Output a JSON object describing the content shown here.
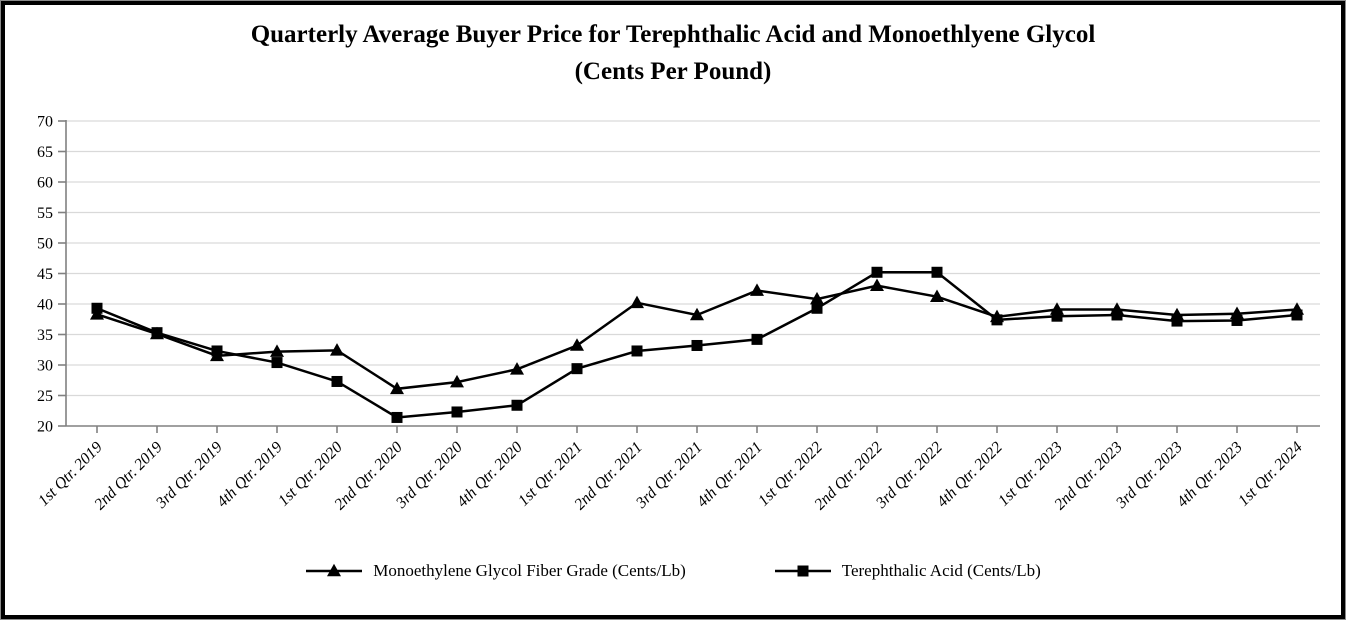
{
  "chart_data": {
    "type": "line",
    "title_line1": "Quarterly Average Buyer Price for Terephthalic Acid and Monoethlyene Glycol",
    "title_line2": "(Cents Per Pound)",
    "categories": [
      "1st Qtr. 2019",
      "2nd Qtr. 2019",
      "3rd Qtr. 2019",
      "4th Qtr. 2019",
      "1st Qtr. 2020",
      "2nd Qtr. 2020",
      "3rd Qtr. 2020",
      "4th Qtr. 2020",
      "1st Qtr. 2021",
      "2nd Qtr. 2021",
      "3rd Qtr. 2021",
      "4th Qtr. 2021",
      "1st Qtr. 2022",
      "2nd Qtr. 2022",
      "3rd Qtr. 2022",
      "4th Qtr. 2022",
      "1st Qtr. 2023",
      "2nd Qtr. 2023",
      "3rd Qtr. 2023",
      "4th Qtr. 2023",
      "1st Qtr. 2024"
    ],
    "series": [
      {
        "name": "Monoethylene Glycol Fiber Grade (Cents/Lb)",
        "marker": "triangle",
        "color": "#000000",
        "values": [
          38.3,
          35.1,
          31.5,
          32.2,
          32.4,
          26.1,
          27.2,
          29.3,
          33.2,
          40.2,
          38.2,
          42.2,
          40.8,
          43.0,
          41.2,
          37.9,
          39.1,
          39.1,
          38.2,
          38.4,
          39.1
        ]
      },
      {
        "name": "Terephthalic Acid (Cents/Lb)",
        "marker": "square",
        "color": "#000000",
        "values": [
          39.3,
          35.3,
          32.3,
          30.4,
          27.3,
          21.4,
          22.3,
          23.4,
          29.4,
          32.3,
          33.2,
          34.2,
          39.3,
          45.2,
          45.2,
          37.4,
          38.0,
          38.2,
          37.2,
          37.3,
          38.2
        ]
      }
    ],
    "ylim": [
      20,
      70
    ],
    "yticks": [
      20,
      25,
      30,
      35,
      40,
      45,
      50,
      55,
      60,
      65,
      70
    ],
    "grid": true,
    "legend_position": "bottom",
    "xlabel": "",
    "ylabel": "",
    "colors": {
      "line": "#000000",
      "grid": "#d9d9d9",
      "axis": "#808080",
      "background": "#ffffff",
      "border": "#000000"
    }
  }
}
